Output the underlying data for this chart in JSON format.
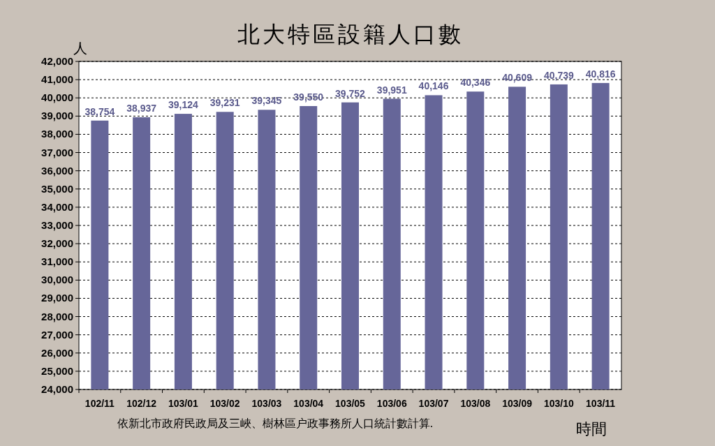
{
  "chart_data": {
    "type": "bar",
    "title": "北大特區設籍人口數",
    "ylabel": "人",
    "xlabel": "時間",
    "annotations": [
      "依新北市政府民政局及三峽、樹林區户政事務所人口統計數計算."
    ],
    "categories": [
      "102/11",
      "102/12",
      "103/01",
      "103/02",
      "103/03",
      "103/04",
      "103/05",
      "103/06",
      "103/07",
      "103/08",
      "103/09",
      "103/10",
      "103/11"
    ],
    "values": [
      38754,
      38937,
      39124,
      39231,
      39345,
      39550,
      39752,
      39951,
      40146,
      40346,
      40609,
      40739,
      40816
    ],
    "color": "#666699",
    "value_labels": [
      "38,754",
      "38,937",
      "39,124",
      "39,231",
      "39,345",
      "39,550",
      "39,752",
      "39,951",
      "40,146",
      "40,346",
      "40,609",
      "40,739",
      "40,816"
    ],
    "ylim": [
      24000,
      42000
    ],
    "yticks": [
      {
        "value": 24000,
        "label": "24,000"
      },
      {
        "value": 25000,
        "label": "25,000"
      },
      {
        "value": 26000,
        "label": "26,000"
      },
      {
        "value": 27000,
        "label": "27,000"
      },
      {
        "value": 28000,
        "label": "28,000"
      },
      {
        "value": 29000,
        "label": "29,000"
      },
      {
        "value": 30000,
        "label": "30,000"
      },
      {
        "value": 31000,
        "label": "31,000"
      },
      {
        "value": 32000,
        "label": "32,000"
      },
      {
        "value": 33000,
        "label": "33,000"
      },
      {
        "value": 34000,
        "label": "34,000"
      },
      {
        "value": 35000,
        "label": "35,000"
      },
      {
        "value": 36000,
        "label": "36,000"
      },
      {
        "value": 37000,
        "label": "37,000"
      },
      {
        "value": 38000,
        "label": "38,000"
      },
      {
        "value": 39000,
        "label": "39,000"
      },
      {
        "value": 40000,
        "label": "40,000"
      },
      {
        "value": 41000,
        "label": "41,000"
      },
      {
        "value": 42000,
        "label": "42,000"
      }
    ],
    "grid": "y"
  }
}
